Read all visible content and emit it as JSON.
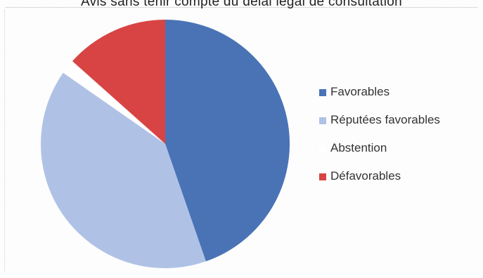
{
  "chart_data": {
    "type": "pie",
    "title": "Avis sans tenir compte du délai légal de consultation",
    "slices": [
      {
        "label": "Favorables",
        "value": 44.7,
        "color": "#4a73b6"
      },
      {
        "label": "Réputées favorables",
        "value": 40.0,
        "color": "#afc2e6"
      },
      {
        "label": "Abstention",
        "value": 1.9,
        "color": "#ffffff"
      },
      {
        "label": "Défavorables",
        "value": 13.4,
        "color": "#d84444"
      }
    ],
    "legend_position": "right"
  }
}
